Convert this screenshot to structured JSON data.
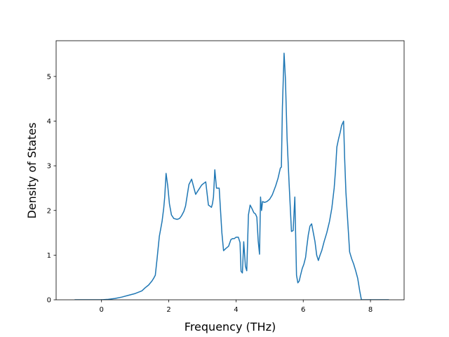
{
  "chart_data": {
    "type": "line",
    "title": "",
    "xlabel": "Frequency (THz)",
    "ylabel": "Density of States",
    "xlim": [
      -1.35,
      9.0
    ],
    "ylim": [
      0,
      5.8
    ],
    "xticks": [
      0,
      2,
      4,
      6,
      8
    ],
    "yticks": [
      0,
      1,
      2,
      3,
      4,
      5
    ],
    "grid": false,
    "line_color": "#1f77b4",
    "series": [
      {
        "x": [
          -0.8,
          -0.4,
          0.0,
          0.2,
          0.4,
          0.6,
          0.8,
          1.0,
          1.2,
          1.3,
          1.4,
          1.5,
          1.55,
          1.6,
          1.65,
          1.72,
          1.8,
          1.85,
          1.88,
          1.92,
          1.97,
          2.02,
          2.08,
          2.15,
          2.25,
          2.32,
          2.38,
          2.45,
          2.5,
          2.6,
          2.68,
          2.75,
          2.8,
          2.85,
          2.92,
          2.98,
          3.03,
          3.1,
          3.18,
          3.22,
          3.27,
          3.3,
          3.33,
          3.37,
          3.42,
          3.5,
          3.58,
          3.63,
          3.7,
          3.78,
          3.85,
          3.9,
          3.95,
          4.0,
          4.07,
          4.12,
          4.15,
          4.19,
          4.23,
          4.28,
          4.32,
          4.37,
          4.42,
          4.47,
          4.53,
          4.58,
          4.62,
          4.66,
          4.7,
          4.73,
          4.76,
          4.79,
          4.85,
          4.92,
          5.0,
          5.08,
          5.18,
          5.25,
          5.32,
          5.35,
          5.38,
          5.43,
          5.47,
          5.52,
          5.58,
          5.65,
          5.7,
          5.75,
          5.8,
          5.84,
          5.88,
          5.92,
          5.97,
          6.02,
          6.07,
          6.1,
          6.15,
          6.2,
          6.25,
          6.3,
          6.35,
          6.4,
          6.45,
          6.5,
          6.55,
          6.62,
          6.7,
          6.78,
          6.85,
          6.92,
          6.96,
          7.0,
          7.05,
          7.1,
          7.14,
          7.17,
          7.2,
          7.23,
          7.27,
          7.32,
          7.38,
          7.44,
          7.5,
          7.56,
          7.62,
          7.68,
          7.73,
          7.78,
          7.82,
          7.9,
          8.2,
          8.55
        ],
        "y": [
          0,
          0,
          0,
          0.01,
          0.03,
          0.06,
          0.1,
          0.14,
          0.2,
          0.27,
          0.33,
          0.42,
          0.48,
          0.55,
          0.9,
          1.42,
          1.75,
          2.05,
          2.3,
          2.83,
          2.55,
          2.15,
          1.9,
          1.82,
          1.8,
          1.82,
          1.88,
          1.98,
          2.1,
          2.58,
          2.7,
          2.5,
          2.36,
          2.42,
          2.5,
          2.57,
          2.6,
          2.64,
          2.12,
          2.1,
          2.07,
          2.15,
          2.3,
          2.91,
          2.5,
          2.5,
          1.5,
          1.1,
          1.15,
          1.2,
          1.35,
          1.37,
          1.37,
          1.4,
          1.4,
          1.28,
          0.64,
          0.6,
          1.3,
          0.75,
          0.65,
          1.9,
          2.12,
          2.05,
          1.95,
          1.92,
          1.85,
          1.32,
          1.02,
          2.3,
          2.0,
          2.2,
          2.18,
          2.2,
          2.25,
          2.35,
          2.55,
          2.72,
          2.95,
          2.97,
          4.3,
          5.52,
          4.95,
          3.6,
          2.6,
          1.53,
          1.55,
          2.3,
          0.55,
          0.38,
          0.42,
          0.55,
          0.7,
          0.8,
          0.95,
          1.15,
          1.45,
          1.65,
          1.7,
          1.5,
          1.3,
          1.0,
          0.88,
          1.0,
          1.1,
          1.3,
          1.5,
          1.75,
          2.05,
          2.5,
          2.9,
          3.42,
          3.6,
          3.75,
          3.9,
          3.95,
          4.0,
          3.2,
          2.4,
          1.8,
          1.07,
          0.92,
          0.8,
          0.65,
          0.48,
          0.2,
          0.0,
          0.0,
          0.0,
          0.0,
          0.0,
          0.0
        ]
      }
    ]
  }
}
